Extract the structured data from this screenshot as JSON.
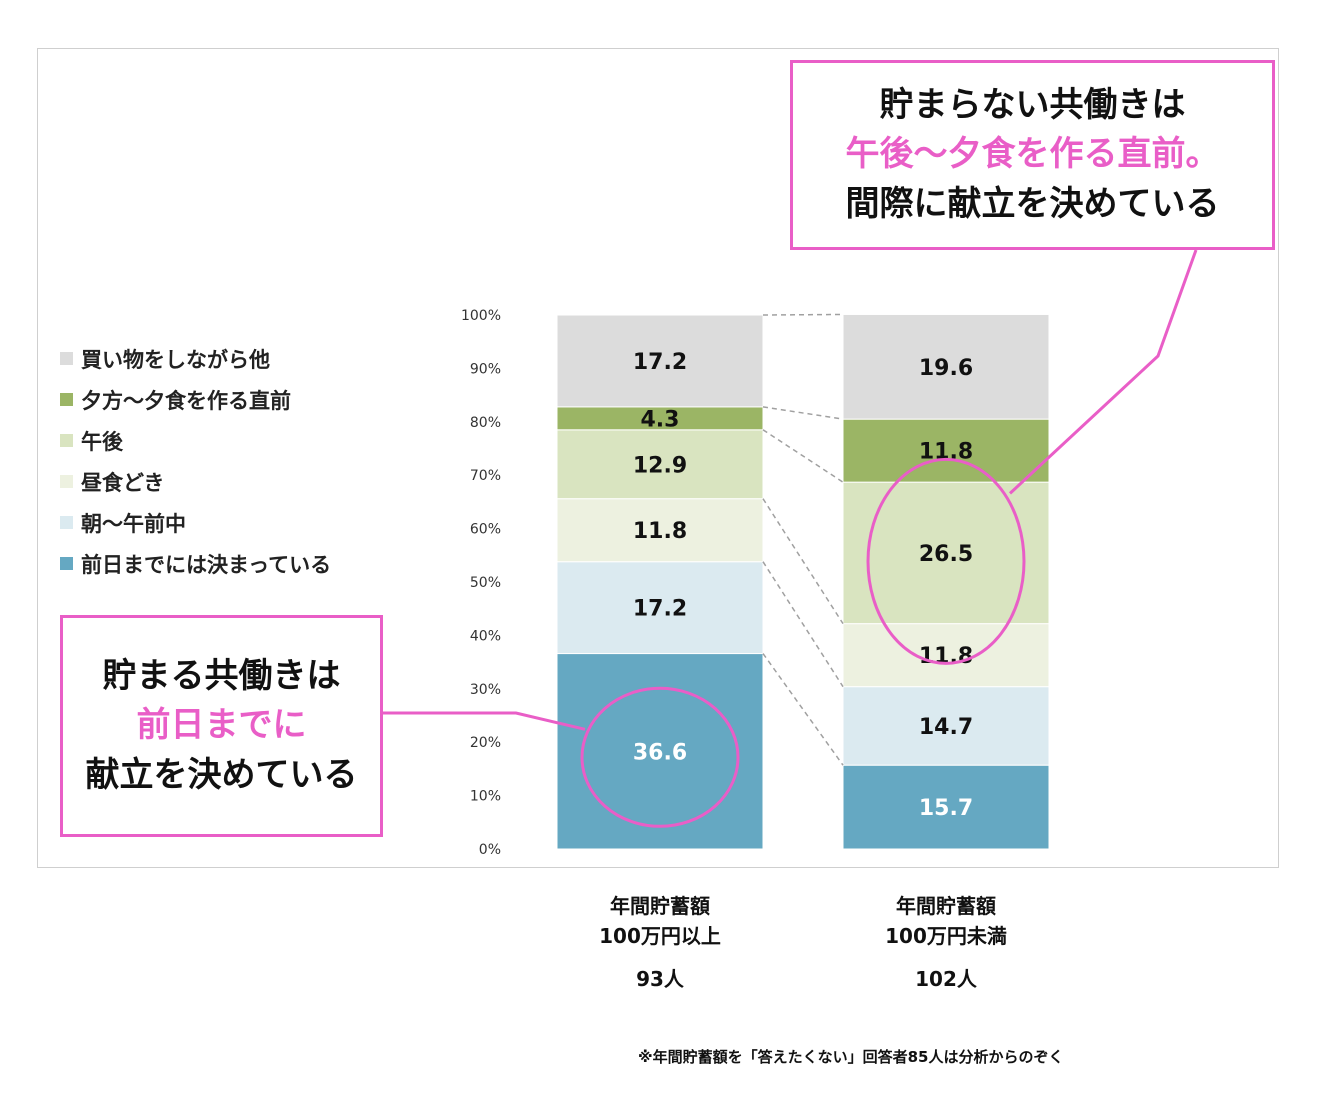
{
  "chart_data": {
    "type": "bar",
    "stacked": true,
    "categories": [
      [
        "年間貯蓄額",
        "100万円以上"
      ],
      [
        "年間貯蓄額",
        "100万円未満"
      ]
    ],
    "counts": [
      "93人",
      "102人"
    ],
    "series": [
      {
        "name": "前日までには決まっている",
        "color": "#65a8c2",
        "values": [
          36.6,
          15.7
        ]
      },
      {
        "name": "朝～午前中",
        "color": "#dbeaf0",
        "values": [
          17.2,
          14.7
        ]
      },
      {
        "name": "昼食どき",
        "color": "#edf1e0",
        "values": [
          11.8,
          11.8
        ]
      },
      {
        "name": "午後",
        "color": "#d9e4c0",
        "values": [
          12.9,
          26.5
        ]
      },
      {
        "name": "夕方～夕食を作る直前",
        "color": "#9bb565",
        "values": [
          4.3,
          11.8
        ]
      },
      {
        "name": "買い物をしながら他",
        "color": "#dcdcdc",
        "values": [
          17.2,
          19.6
        ]
      }
    ],
    "yticks": [
      "0%",
      "10%",
      "20%",
      "30%",
      "40%",
      "50%",
      "60%",
      "70%",
      "80%",
      "90%",
      "100%"
    ],
    "ylim": [
      0,
      100
    ],
    "legend_position": "left",
    "highlight": [
      [
        0,
        0
      ],
      [
        1,
        4
      ],
      [
        1,
        3
      ]
    ]
  },
  "callouts": {
    "top": {
      "line1": "貯まらない共働きは",
      "line2": "午後～夕食を作る直前。",
      "line3": "間際に献立を決めている"
    },
    "left": {
      "line1": "貯まる共働きは",
      "line2": "前日までに",
      "line3": "献立を決めている"
    }
  },
  "footnote": "※年間貯蓄額を「答えたくない」回答者85人は分析からのぞく",
  "colors": {
    "accent": "#e95ec7",
    "connector": "#a0a0a0"
  }
}
